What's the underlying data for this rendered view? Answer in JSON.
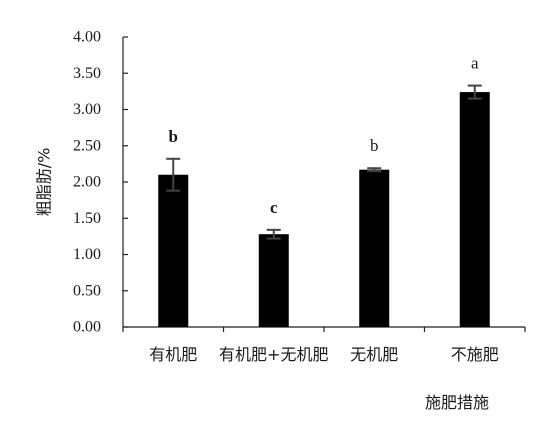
{
  "chart_data": {
    "type": "bar",
    "title": "",
    "xlabel": "施肥措施",
    "ylabel": "粗脂肪/%",
    "ylim": [
      0,
      4
    ],
    "y_ticks": [
      "0.00",
      "0.50",
      "1.00",
      "1.50",
      "2.00",
      "2.50",
      "3.00",
      "3.50",
      "4.00"
    ],
    "categories": [
      "有机肥",
      "有机肥+无机肥",
      "无机肥",
      "不施肥"
    ],
    "values": [
      2.1,
      1.28,
      2.17,
      3.24
    ],
    "errors": [
      0.22,
      0.06,
      0.02,
      0.09
    ],
    "significance": [
      "b",
      "c",
      "b",
      "a"
    ],
    "significance_bold": [
      true,
      true,
      false,
      false
    ],
    "grid": false,
    "bar_color": "#000000",
    "error_color": "#444444"
  }
}
